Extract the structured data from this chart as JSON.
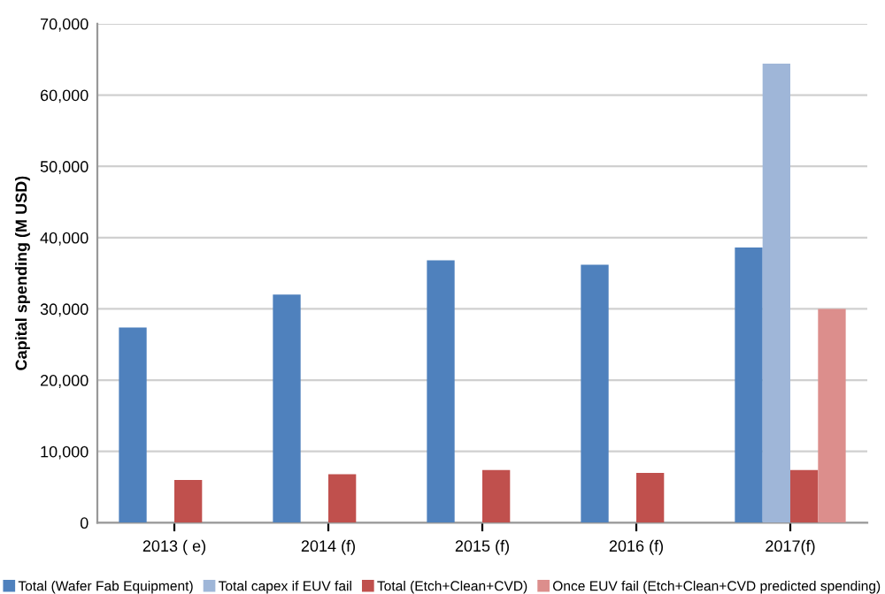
{
  "chart_data": {
    "type": "bar",
    "ylabel": "Capital spending (M USD)",
    "categories": [
      "2013 ( e)",
      "2014 (f)",
      "2015 (f)",
      "2016 (f)",
      "2017(f)"
    ],
    "series": [
      {
        "name": "Total (Wafer Fab Equipment)",
        "color": "#4f81bd",
        "values": [
          27400,
          32000,
          36800,
          36200,
          38600
        ]
      },
      {
        "name": "Total capex if EUV fail",
        "color": "#9fb6d8",
        "values": [
          null,
          null,
          null,
          null,
          64400
        ]
      },
      {
        "name": "Total (Etch+Clean+CVD)",
        "color": "#c0504d",
        "values": [
          6000,
          6800,
          7400,
          7000,
          7400
        ]
      },
      {
        "name": "Once EUV fail (Etch+Clean+CVD predicted spending)",
        "color": "#dc8e8c",
        "values": [
          null,
          null,
          null,
          null,
          30000
        ]
      }
    ],
    "ylim": [
      0,
      70000
    ],
    "yticks": [
      {
        "value": 0,
        "label": "0"
      },
      {
        "value": 10000,
        "label": "10,000"
      },
      {
        "value": 20000,
        "label": "20,000"
      },
      {
        "value": 30000,
        "label": "30,000"
      },
      {
        "value": 40000,
        "label": "40,000"
      },
      {
        "value": 50000,
        "label": "50,000"
      },
      {
        "value": 60000,
        "label": "60,000"
      },
      {
        "value": 70000,
        "label": "70,000"
      }
    ],
    "grid": "y",
    "legend": "bottom"
  }
}
